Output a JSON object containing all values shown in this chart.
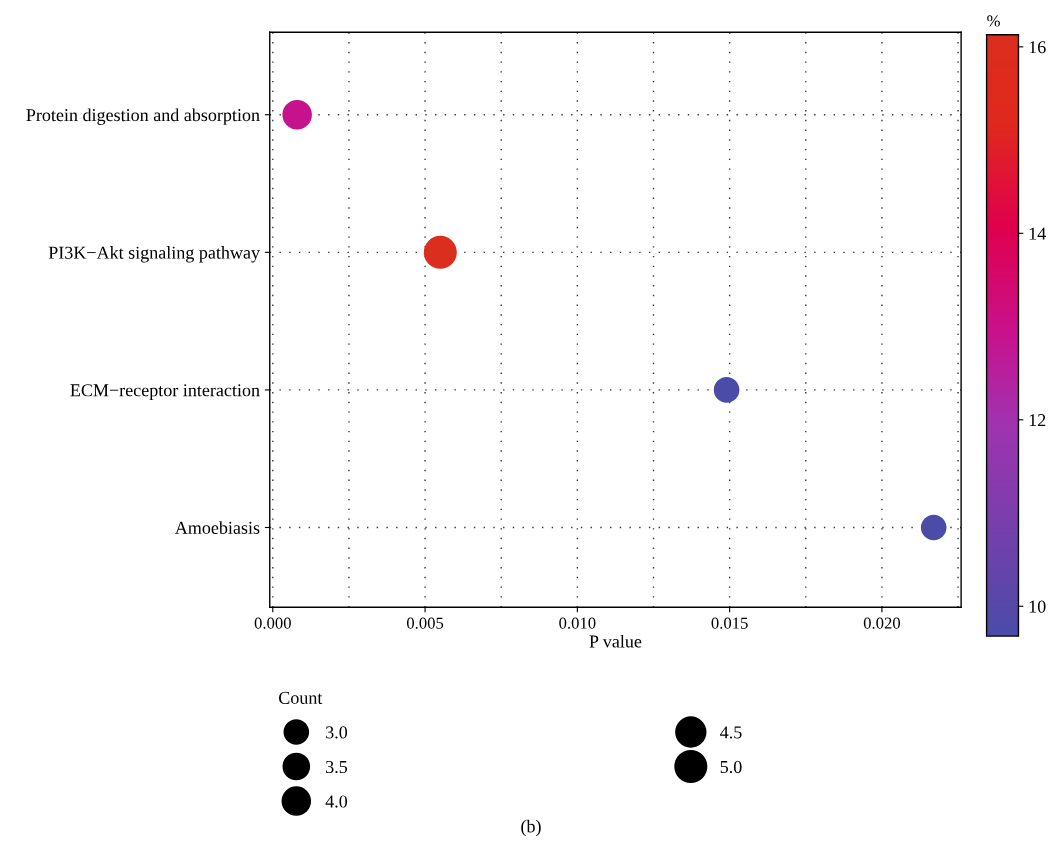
{
  "chart_data": {
    "type": "bubble",
    "categories": [
      "Protein digestion and absorption",
      "PI3K−Akt signaling pathway",
      "ECM−receptor interaction",
      "Amoebiasis"
    ],
    "orientation": "horizontal",
    "values": [
      0.0008,
      0.0055,
      0.0149,
      0.0217
    ],
    "sizes": [
      4,
      5,
      3,
      3
    ],
    "size_legend": [
      {
        "value": 3,
        "label": "3.0"
      },
      {
        "value": 3.5,
        "label": "3.5"
      },
      {
        "value": 4,
        "label": "4.0"
      },
      {
        "value": 4.5,
        "label": "4.5"
      },
      {
        "value": 5,
        "label": "5.0"
      }
    ],
    "legend_title": "Count",
    "cvalues": [
      12.9,
      16.13,
      9.68,
      9.68
    ],
    "clim": [
      9.68,
      16.13
    ],
    "cticks": [
      10,
      12,
      14,
      16
    ],
    "clabel": "%",
    "xlabel": "P value",
    "xlim": [
      -0.0001,
      0.0226
    ],
    "xticks": [
      {
        "value": 0.0,
        "label": "0.000"
      },
      {
        "value": 0.0025,
        "label": null
      },
      {
        "value": 0.005,
        "label": "0.005"
      },
      {
        "value": 0.0075,
        "label": null
      },
      {
        "value": 0.01,
        "label": "0.010"
      },
      {
        "value": 0.0125,
        "label": null
      },
      {
        "value": 0.015,
        "label": "0.015"
      },
      {
        "value": 0.0175,
        "label": null
      },
      {
        "value": 0.02,
        "label": "0.020"
      },
      {
        "value": 0.0225,
        "label": null
      }
    ],
    "grid": true,
    "annotations": [
      "(b)"
    ]
  }
}
